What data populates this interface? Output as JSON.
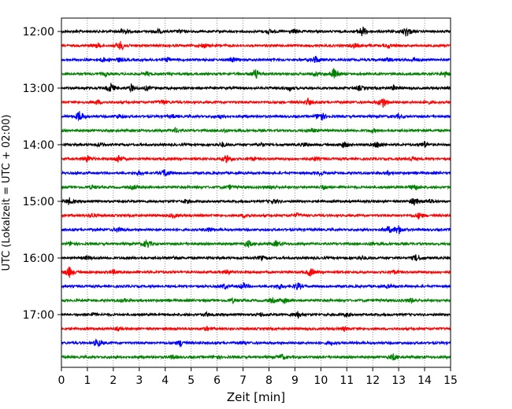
{
  "chart_data": {
    "type": "line",
    "title": "",
    "xlabel": "Zeit  [min]",
    "ylabel": "UTC (Lokalzeit = UTC + 02:00)",
    "xlim": [
      0,
      15
    ],
    "x_ticks": [
      "0",
      "1",
      "2",
      "3",
      "4",
      "5",
      "6",
      "7",
      "8",
      "9",
      "10",
      "11",
      "12",
      "13",
      "14",
      "15"
    ],
    "y_ticks": [
      "12:00",
      "13:00",
      "14:00",
      "15:00",
      "16:00",
      "17:00"
    ],
    "grid": "vertical dotted",
    "row_interval_minutes": 15,
    "color_cycle": [
      "#000000",
      "#ff0000",
      "#0000ff",
      "#008000"
    ],
    "series": [
      {
        "start": "12:00",
        "color": "#000000",
        "events": [
          [
            2.4,
            0.6
          ],
          [
            3.7,
            0.4
          ],
          [
            4.6,
            0.3
          ],
          [
            8.0,
            0.35
          ],
          [
            9.0,
            0.4
          ],
          [
            11.6,
            1.0
          ],
          [
            13.3,
            1.0
          ]
        ]
      },
      {
        "start": "12:15",
        "color": "#ff0000",
        "events": [
          [
            1.4,
            0.4
          ],
          [
            2.3,
            0.9
          ],
          [
            5.5,
            0.4
          ],
          [
            11.3,
            0.4
          ],
          [
            12.6,
            0.4
          ]
        ]
      },
      {
        "start": "12:30",
        "color": "#0000ff",
        "events": [
          [
            1.6,
            0.4
          ],
          [
            2.2,
            0.35
          ],
          [
            4.1,
            0.35
          ],
          [
            6.6,
            0.4
          ],
          [
            9.8,
            0.7
          ],
          [
            12.6,
            0.35
          ],
          [
            13.6,
            0.35
          ]
        ]
      },
      {
        "start": "12:45",
        "color": "#008000",
        "events": [
          [
            1.7,
            0.35
          ],
          [
            3.3,
            0.35
          ],
          [
            7.5,
            0.9
          ],
          [
            9.8,
            0.35
          ],
          [
            10.5,
            1.0
          ],
          [
            14.8,
            0.5
          ]
        ]
      },
      {
        "start": "13:00",
        "color": "#000000",
        "events": [
          [
            1.9,
            0.9
          ],
          [
            2.7,
            0.6
          ],
          [
            3.3,
            0.4
          ],
          [
            8.8,
            0.4
          ],
          [
            11.5,
            0.4
          ],
          [
            12.8,
            0.35
          ]
        ]
      },
      {
        "start": "13:15",
        "color": "#ff0000",
        "events": [
          [
            1.4,
            0.35
          ],
          [
            3.9,
            0.5
          ],
          [
            9.5,
            0.6
          ],
          [
            12.4,
            1.0
          ],
          [
            14.1,
            0.3
          ]
        ]
      },
      {
        "start": "13:30",
        "color": "#0000ff",
        "events": [
          [
            0.7,
            1.0
          ],
          [
            2.2,
            0.35
          ],
          [
            4.3,
            0.3
          ],
          [
            6.1,
            0.3
          ],
          [
            10.0,
            1.0
          ],
          [
            13.0,
            0.35
          ]
        ]
      },
      {
        "start": "13:45",
        "color": "#008000",
        "events": [
          [
            4.4,
            0.4
          ],
          [
            6.3,
            0.3
          ],
          [
            9.7,
            0.4
          ],
          [
            12.0,
            0.3
          ]
        ]
      },
      {
        "start": "14:00",
        "color": "#000000",
        "events": [
          [
            1.5,
            0.35
          ],
          [
            6.2,
            0.4
          ],
          [
            7.7,
            0.35
          ],
          [
            9.4,
            0.4
          ],
          [
            10.9,
            0.6
          ],
          [
            12.2,
            0.6
          ],
          [
            14.0,
            0.6
          ]
        ]
      },
      {
        "start": "14:15",
        "color": "#ff0000",
        "events": [
          [
            1.0,
            0.6
          ],
          [
            2.2,
            0.8
          ],
          [
            6.4,
            0.8
          ],
          [
            7.4,
            0.3
          ],
          [
            9.8,
            0.3
          ],
          [
            13.5,
            0.3
          ]
        ]
      },
      {
        "start": "14:30",
        "color": "#0000ff",
        "events": [
          [
            3.0,
            0.35
          ],
          [
            4.0,
            0.7
          ],
          [
            10.0,
            0.35
          ],
          [
            12.6,
            0.3
          ]
        ]
      },
      {
        "start": "14:45",
        "color": "#008000",
        "events": [
          [
            1.2,
            0.35
          ],
          [
            2.8,
            0.35
          ],
          [
            6.5,
            0.35
          ],
          [
            8.1,
            0.35
          ],
          [
            10.1,
            0.4
          ],
          [
            13.6,
            0.6
          ]
        ]
      },
      {
        "start": "15:00",
        "color": "#000000",
        "events": [
          [
            0.3,
            0.6
          ],
          [
            4.8,
            0.35
          ],
          [
            8.2,
            0.35
          ],
          [
            13.6,
            0.7
          ],
          [
            14.2,
            0.4
          ]
        ]
      },
      {
        "start": "15:15",
        "color": "#ff0000",
        "events": [
          [
            1.2,
            0.35
          ],
          [
            4.3,
            0.35
          ],
          [
            7.1,
            0.35
          ],
          [
            9.1,
            0.35
          ],
          [
            13.8,
            0.6
          ]
        ]
      },
      {
        "start": "15:30",
        "color": "#0000ff",
        "events": [
          [
            2.2,
            0.5
          ],
          [
            5.7,
            0.4
          ],
          [
            12.6,
            0.6
          ],
          [
            13.0,
            0.8
          ]
        ]
      },
      {
        "start": "15:45",
        "color": "#008000",
        "events": [
          [
            0.4,
            0.35
          ],
          [
            3.3,
            0.8
          ],
          [
            7.2,
            0.6
          ],
          [
            8.3,
            0.5
          ],
          [
            12.0,
            0.3
          ]
        ]
      },
      {
        "start": "16:00",
        "color": "#000000",
        "events": [
          [
            1.0,
            0.35
          ],
          [
            4.4,
            0.35
          ],
          [
            7.7,
            0.35
          ],
          [
            11.6,
            0.35
          ],
          [
            13.7,
            0.7
          ]
        ]
      },
      {
        "start": "16:15",
        "color": "#ff0000",
        "events": [
          [
            0.3,
            1.0
          ],
          [
            2.0,
            0.35
          ],
          [
            6.4,
            0.35
          ],
          [
            9.6,
            0.8
          ],
          [
            12.8,
            0.35
          ]
        ]
      },
      {
        "start": "16:30",
        "color": "#0000ff",
        "events": [
          [
            6.3,
            0.4
          ],
          [
            7.0,
            0.6
          ],
          [
            8.4,
            0.5
          ],
          [
            9.1,
            0.7
          ],
          [
            12.6,
            0.3
          ]
        ]
      },
      {
        "start": "16:45",
        "color": "#008000",
        "events": [
          [
            2.4,
            0.3
          ],
          [
            6.6,
            0.35
          ],
          [
            8.1,
            0.4
          ],
          [
            8.6,
            0.5
          ],
          [
            13.5,
            0.4
          ]
        ]
      },
      {
        "start": "17:00",
        "color": "#000000",
        "events": [
          [
            1.2,
            0.3
          ],
          [
            5.6,
            0.35
          ],
          [
            7.7,
            0.35
          ],
          [
            9.1,
            0.7
          ],
          [
            11.0,
            0.3
          ]
        ]
      },
      {
        "start": "17:15",
        "color": "#ff0000",
        "events": [
          [
            2.2,
            0.3
          ],
          [
            5.6,
            0.3
          ],
          [
            10.9,
            0.3
          ]
        ]
      },
      {
        "start": "17:30",
        "color": "#0000ff",
        "events": [
          [
            1.4,
            0.8
          ],
          [
            4.6,
            0.6
          ],
          [
            7.0,
            0.3
          ],
          [
            10.4,
            0.3
          ]
        ]
      },
      {
        "start": "17:45",
        "color": "#008000",
        "events": [
          [
            4.3,
            0.3
          ],
          [
            6.0,
            0.3
          ],
          [
            8.5,
            0.5
          ],
          [
            12.8,
            0.6
          ]
        ]
      }
    ]
  }
}
